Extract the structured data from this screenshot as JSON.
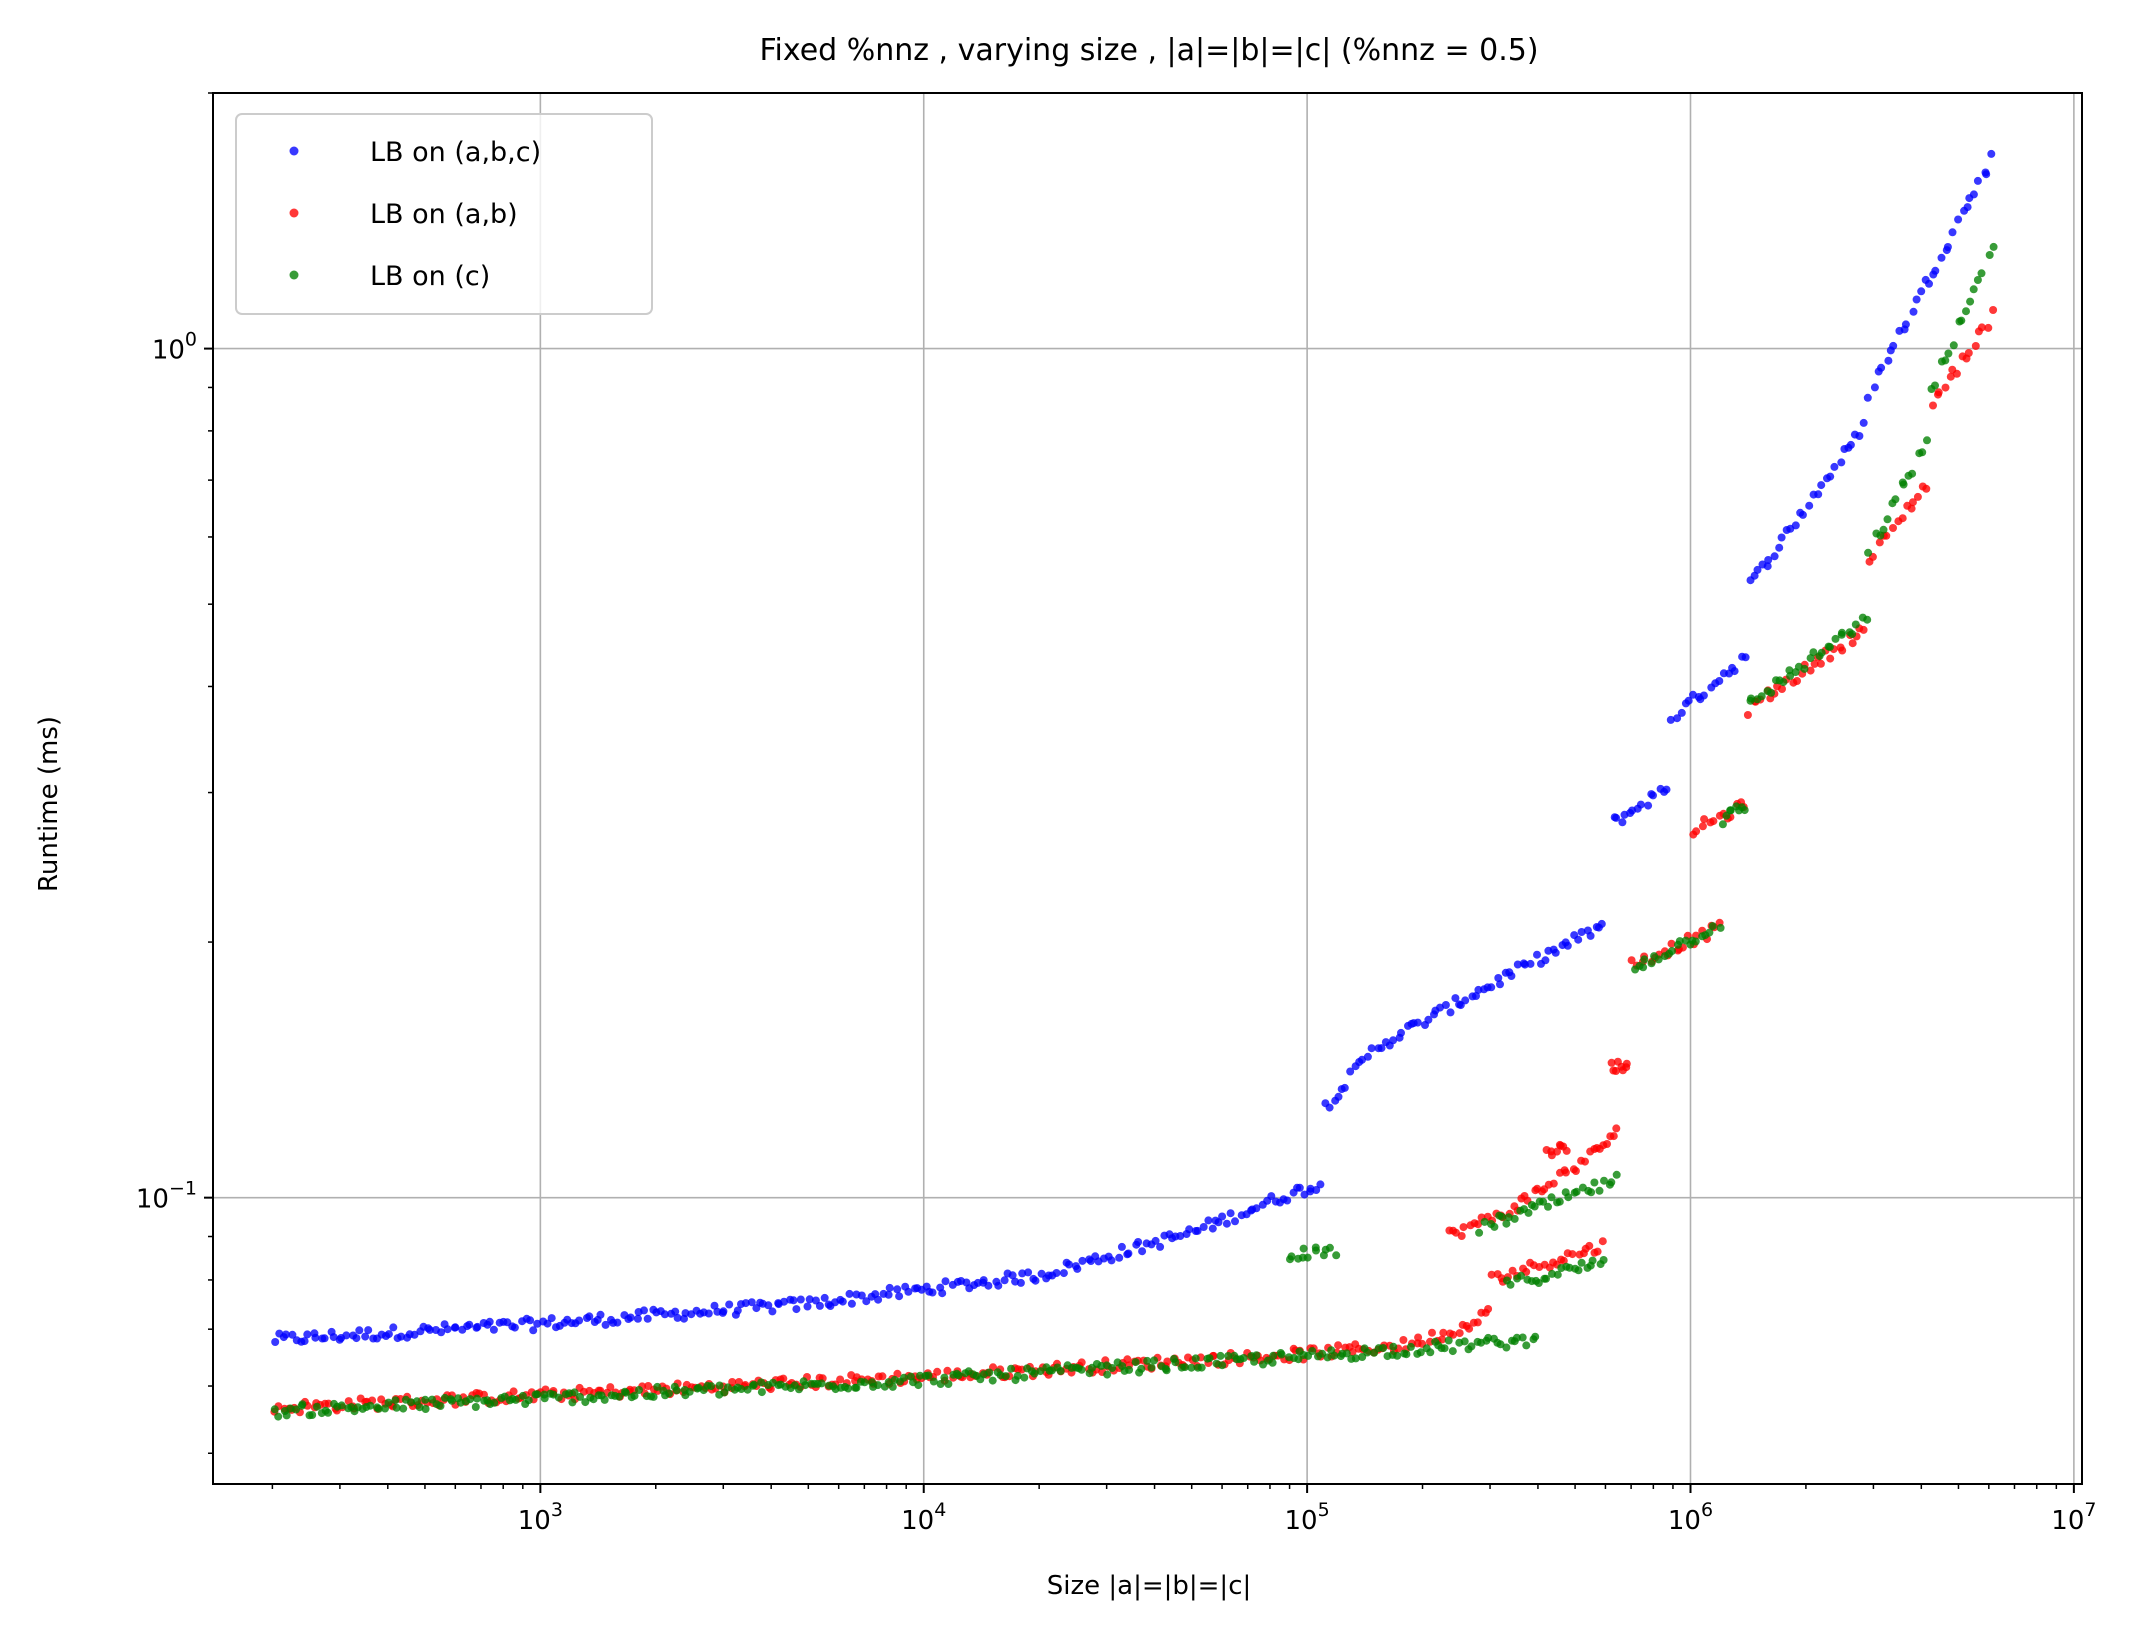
{
  "chart_data": {
    "type": "scatter",
    "title": "Fixed %nnz , varying size , |a|=|b|=|c| (%nnz = 0.5)",
    "xlabel": "Size |a|=|b|=|c|",
    "ylabel": "Runtime (ms)",
    "x_scale": "log",
    "y_scale": "log",
    "xlim": [
      140,
      10500000
    ],
    "ylim": [
      0.046,
      2.0
    ],
    "grid": true,
    "legend_position": "top-left",
    "x_ticks": [
      {
        "value": 1000,
        "base": "10",
        "exp": "3"
      },
      {
        "value": 10000,
        "base": "10",
        "exp": "4"
      },
      {
        "value": 100000,
        "base": "10",
        "exp": "5"
      },
      {
        "value": 1000000,
        "base": "10",
        "exp": "6"
      },
      {
        "value": 10000000,
        "base": "10",
        "exp": "7"
      }
    ],
    "y_ticks": [
      {
        "value": 0.1,
        "base": "10",
        "exp": "−1"
      },
      {
        "value": 1.0,
        "base": "10",
        "exp": "0"
      }
    ],
    "series": [
      {
        "name": "LB on (a,b,c)",
        "color": "#0000ff",
        "segments": [
          {
            "x": [
              200,
              1000,
              5000,
              20000,
              50000,
              90000,
              110000
            ],
            "y": [
              0.068,
              0.071,
              0.075,
              0.081,
              0.091,
              0.101,
              0.104
            ]
          },
          {
            "x": [
              110000,
              150000,
              300000,
              600000
            ],
            "y": [
              0.127,
              0.15,
              0.178,
              0.21
            ]
          },
          {
            "x": [
              620000,
              880000
            ],
            "y": [
              0.275,
              0.305
            ]
          },
          {
            "x": [
              880000,
              1400000
            ],
            "y": [
              0.365,
              0.435
            ]
          },
          {
            "x": [
              1400000,
              2900000
            ],
            "y": [
              0.52,
              0.82
            ]
          },
          {
            "x": [
              2900000,
              6200000
            ],
            "y": [
              0.88,
              1.7
            ]
          }
        ]
      },
      {
        "name": "LB on (a,b)",
        "color": "#ff0000",
        "segments": [
          {
            "x": [
              200,
              1000,
              10000,
              100000,
              180000,
              250000,
              300000
            ],
            "y": [
              0.0565,
              0.0585,
              0.0615,
              0.0655,
              0.067,
              0.07,
              0.074
            ]
          },
          {
            "x": [
              230000,
              330000,
              550000,
              650000
            ],
            "y": [
              0.09,
              0.096,
              0.112,
              0.12
            ]
          },
          {
            "x": [
              300000,
              600000
            ],
            "y": [
              0.08,
              0.088
            ]
          },
          {
            "x": [
              420000,
              480000
            ],
            "y": [
              0.114,
              0.114
            ]
          },
          {
            "x": [
              620000,
              690000
            ],
            "y": [
              0.143,
              0.143
            ]
          },
          {
            "x": [
              700000,
              1200000
            ],
            "y": [
              0.188,
              0.208
            ]
          },
          {
            "x": [
              1000000,
              1400000
            ],
            "y": [
              0.27,
              0.29
            ]
          },
          {
            "x": [
              1400000,
              2900000
            ],
            "y": [
              0.375,
              0.47
            ]
          },
          {
            "x": [
              2900000,
              4200000
            ],
            "y": [
              0.56,
              0.7
            ]
          },
          {
            "x": [
              4200000,
              6200000
            ],
            "y": [
              0.85,
              1.1
            ]
          }
        ]
      },
      {
        "name": "LB on (c)",
        "color": "#008000",
        "segments": [
          {
            "x": [
              200,
              1000,
              10000,
              100000,
              200000,
              400000
            ],
            "y": [
              0.056,
              0.058,
              0.061,
              0.065,
              0.0665,
              0.068
            ]
          },
          {
            "x": [
              88000,
              120000
            ],
            "y": [
              0.086,
              0.086
            ]
          },
          {
            "x": [
              280000,
              650000
            ],
            "y": [
              0.092,
              0.105
            ]
          },
          {
            "x": [
              330000,
              600000
            ],
            "y": [
              0.079,
              0.084
            ]
          },
          {
            "x": [
              700000,
              1200000
            ],
            "y": [
              0.186,
              0.21
            ]
          },
          {
            "x": [
              1200000,
              1400000
            ],
            "y": [
              0.278,
              0.29
            ]
          },
          {
            "x": [
              1400000,
              2900000
            ],
            "y": [
              0.38,
              0.48
            ]
          },
          {
            "x": [
              2900000,
              4200000
            ],
            "y": [
              0.57,
              0.79
            ]
          },
          {
            "x": [
              4200000,
              6200000
            ],
            "y": [
              0.88,
              1.32
            ]
          }
        ]
      }
    ]
  }
}
